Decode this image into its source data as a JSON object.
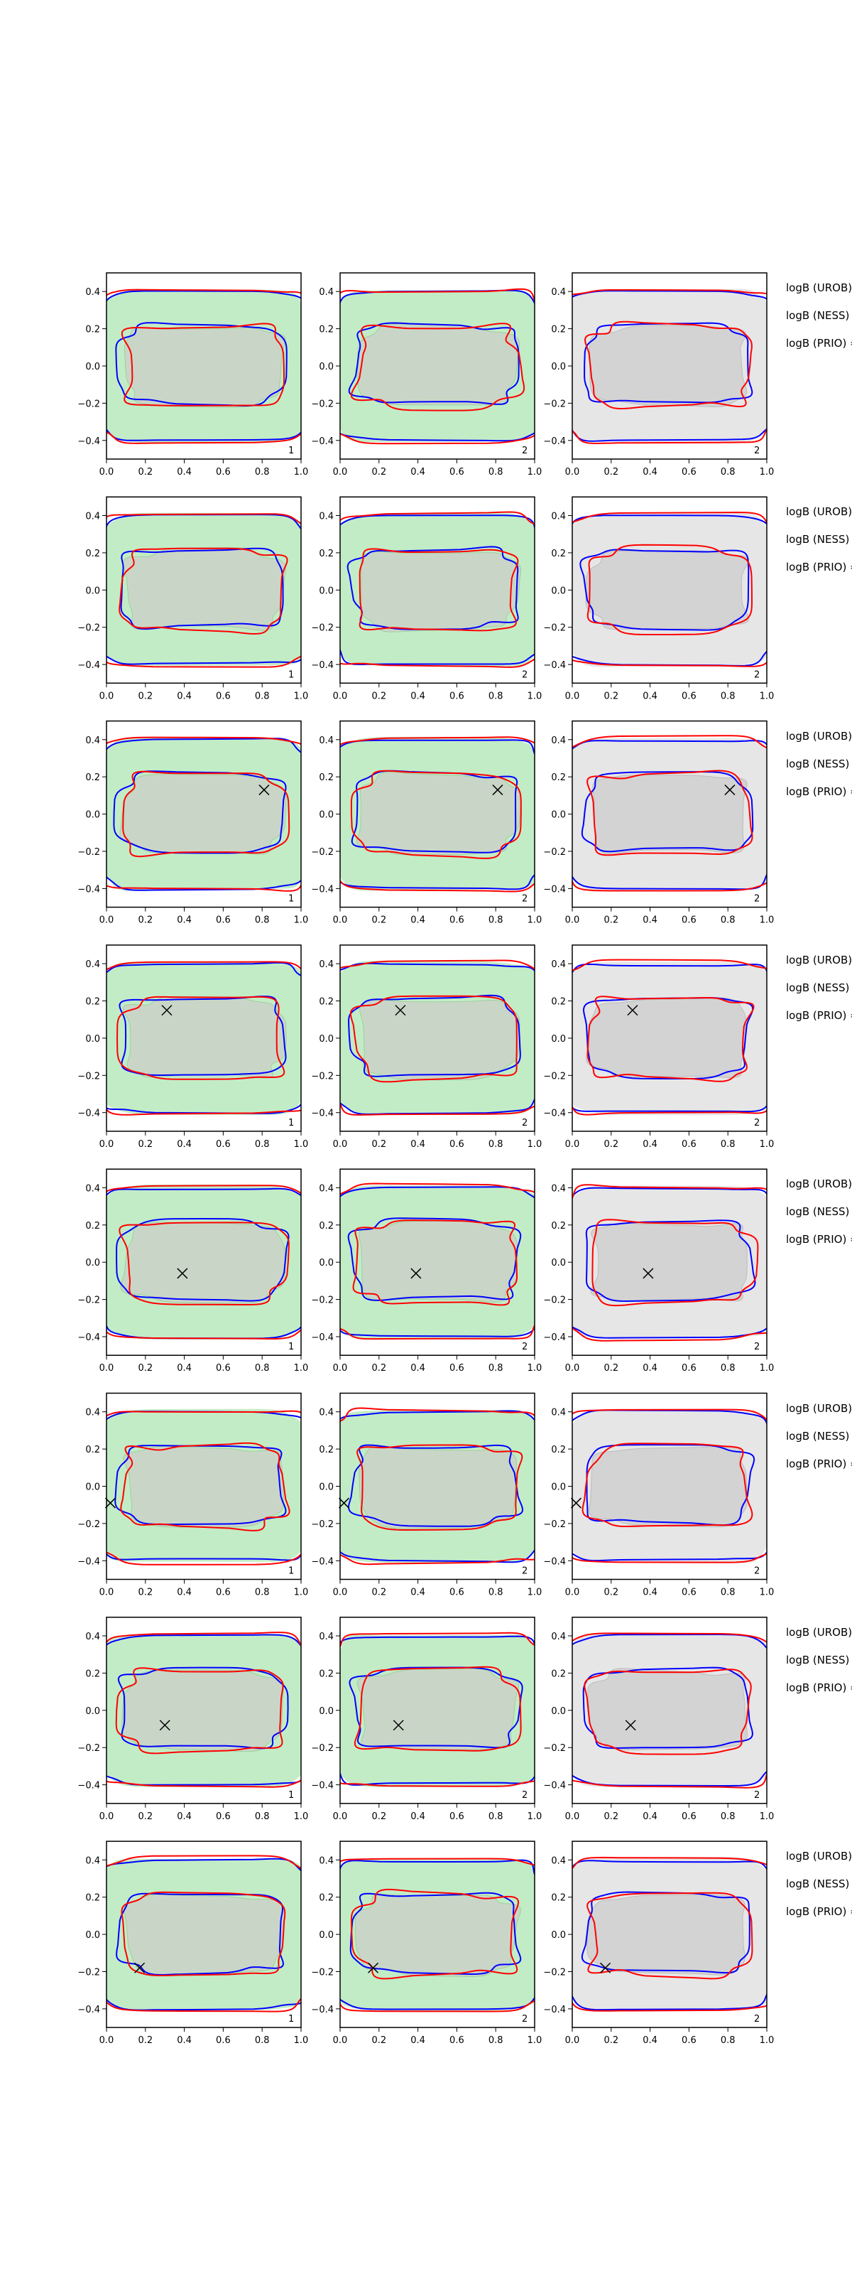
{
  "chart_data": {
    "type": "contour-grid",
    "rows": 8,
    "cols": 3,
    "xlim": [
      0.0,
      1.0
    ],
    "ylim": [
      -0.5,
      0.5
    ],
    "x_ticks": [
      "0.0",
      "0.2",
      "0.4",
      "0.6",
      "0.8",
      "1.0"
    ],
    "x_tick_values": [
      0,
      0.2,
      0.4,
      0.6,
      0.8,
      1.0
    ],
    "y_ticks": [
      "0.4",
      "0.2",
      "0.0",
      "−0.2",
      "−0.4"
    ],
    "y_tick_values": [
      0.4,
      0.2,
      0.0,
      -0.2,
      -0.4
    ],
    "grid": false,
    "colors": {
      "contour_a": "#ff0000",
      "contour_b": "#0000ff",
      "fill_green": "#c2ecc6",
      "fill_gray": "#e6e6e6",
      "inner_fill": "#c9d6c7",
      "inner_fill_gray": "#d3d3d3",
      "marker": "#000000"
    },
    "column_background": [
      "green",
      "green",
      "gray"
    ],
    "panel_labels": [
      [
        "1",
        "2",
        "2"
      ],
      [
        "1",
        "2",
        "2"
      ],
      [
        "1",
        "2",
        "2"
      ],
      [
        "1",
        "2",
        "2"
      ],
      [
        "1",
        "2",
        "2"
      ],
      [
        "1",
        "2",
        "2"
      ],
      [
        "1",
        "2",
        "2"
      ],
      [
        "1",
        "2",
        "2"
      ]
    ],
    "markers": [
      null,
      null,
      [
        0.81,
        0.13
      ],
      [
        0.31,
        0.15
      ],
      [
        0.39,
        -0.06
      ],
      [
        0.02,
        -0.09
      ],
      [
        0.3,
        -0.08
      ],
      [
        0.17,
        -0.18
      ]
    ],
    "marker_symbol": "x"
  },
  "annotations": [
    "logB (UROB) =",
    "logB (NESS) =",
    "logB (PRIO) ="
  ]
}
